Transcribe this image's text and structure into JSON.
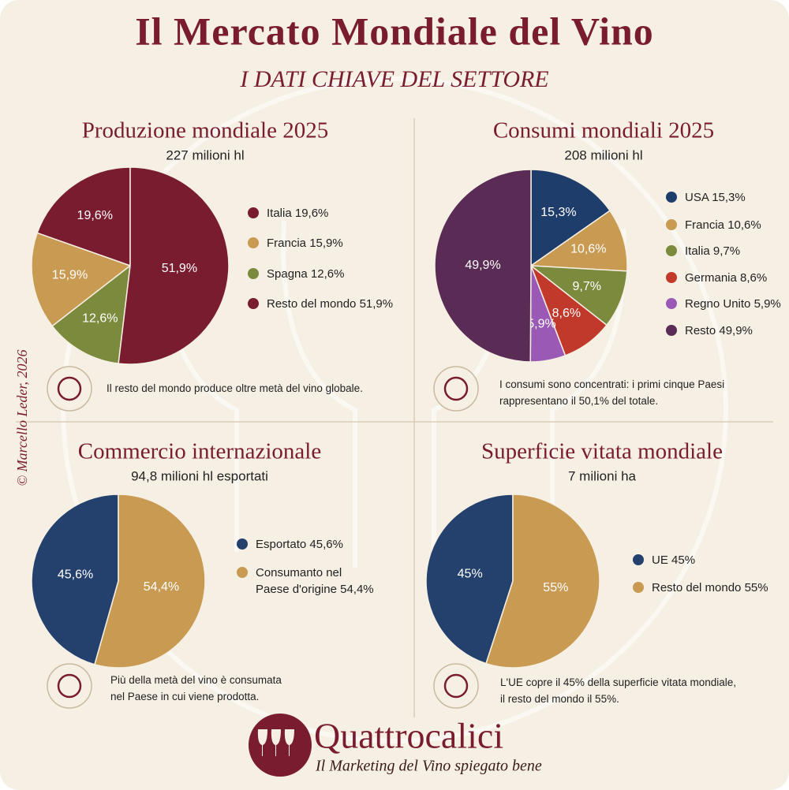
{
  "title": "Il Mercato Mondiale del Vino",
  "subtitle": "I DATI CHIAVE DEL SETTORE",
  "copyright": "© Marcello Leder, 2026",
  "brand": "Quattrocalici",
  "tagline": "Il Marketing del Vino spiegato bene",
  "chart_data": [
    {
      "type": "pie",
      "title": "Produzione mondiale 2025",
      "subtitle": "227 milioni hl",
      "direction": "counterclockwise",
      "categories": [
        "Italia",
        "Francia",
        "Spagna",
        "Resto del mondo"
      ],
      "values": [
        19.6,
        15.9,
        12.6,
        51.9
      ],
      "value_labels": [
        "19,6%",
        "15,9%",
        "12,6%",
        "51,9%"
      ],
      "colors": [
        "#7a1c30",
        "#c99a52",
        "#7b8a3c",
        "#7a1c30"
      ],
      "note": "Il resto del mondo produce oltre metà del vino globale."
    },
    {
      "type": "pie",
      "title": "Consumi mondiali 2025",
      "subtitle": "208 milioni hl",
      "direction": "clockwise",
      "categories": [
        "USA",
        "Francia",
        "Italia",
        "Germania",
        "Regno Unito",
        "Resto"
      ],
      "values": [
        15.3,
        10.6,
        9.7,
        8.6,
        5.9,
        49.9
      ],
      "value_labels": [
        "15,3%",
        "10,6%",
        "9,7%",
        "8,6%",
        "5,9%",
        "49,9%"
      ],
      "colors": [
        "#1f3d6b",
        "#c99a52",
        "#7b8a3c",
        "#c0392b",
        "#9b59b6",
        "#5a2b55"
      ],
      "note": "I consumi sono concentrati: i primi cinque Paesi\nrappresentano il 50,1% del totale."
    },
    {
      "type": "pie",
      "title": "Commercio internazionale",
      "subtitle": "94,8 milioni hl esportati",
      "direction": "counterclockwise",
      "categories": [
        "Esportato",
        "Consumanto nel\nPaese d'origine"
      ],
      "values": [
        45.6,
        54.4
      ],
      "value_labels": [
        "45,6%",
        "54,4%"
      ],
      "colors": [
        "#24406d",
        "#c99a52"
      ],
      "note": "Più della metà del vino è consumata\nnel Paese in cui viene prodotta."
    },
    {
      "type": "pie",
      "title": "Superficie vitata mondiale",
      "subtitle": "7 milioni ha",
      "direction": "counterclockwise",
      "categories": [
        "UE",
        "Resto del mondo"
      ],
      "values": [
        45,
        55
      ],
      "value_labels": [
        "45%",
        "55%"
      ],
      "colors": [
        "#24406d",
        "#c99a52"
      ],
      "note": "L'UE copre il 45% della superficie vitata mondiale,\nil resto del mondo il 55%."
    }
  ]
}
